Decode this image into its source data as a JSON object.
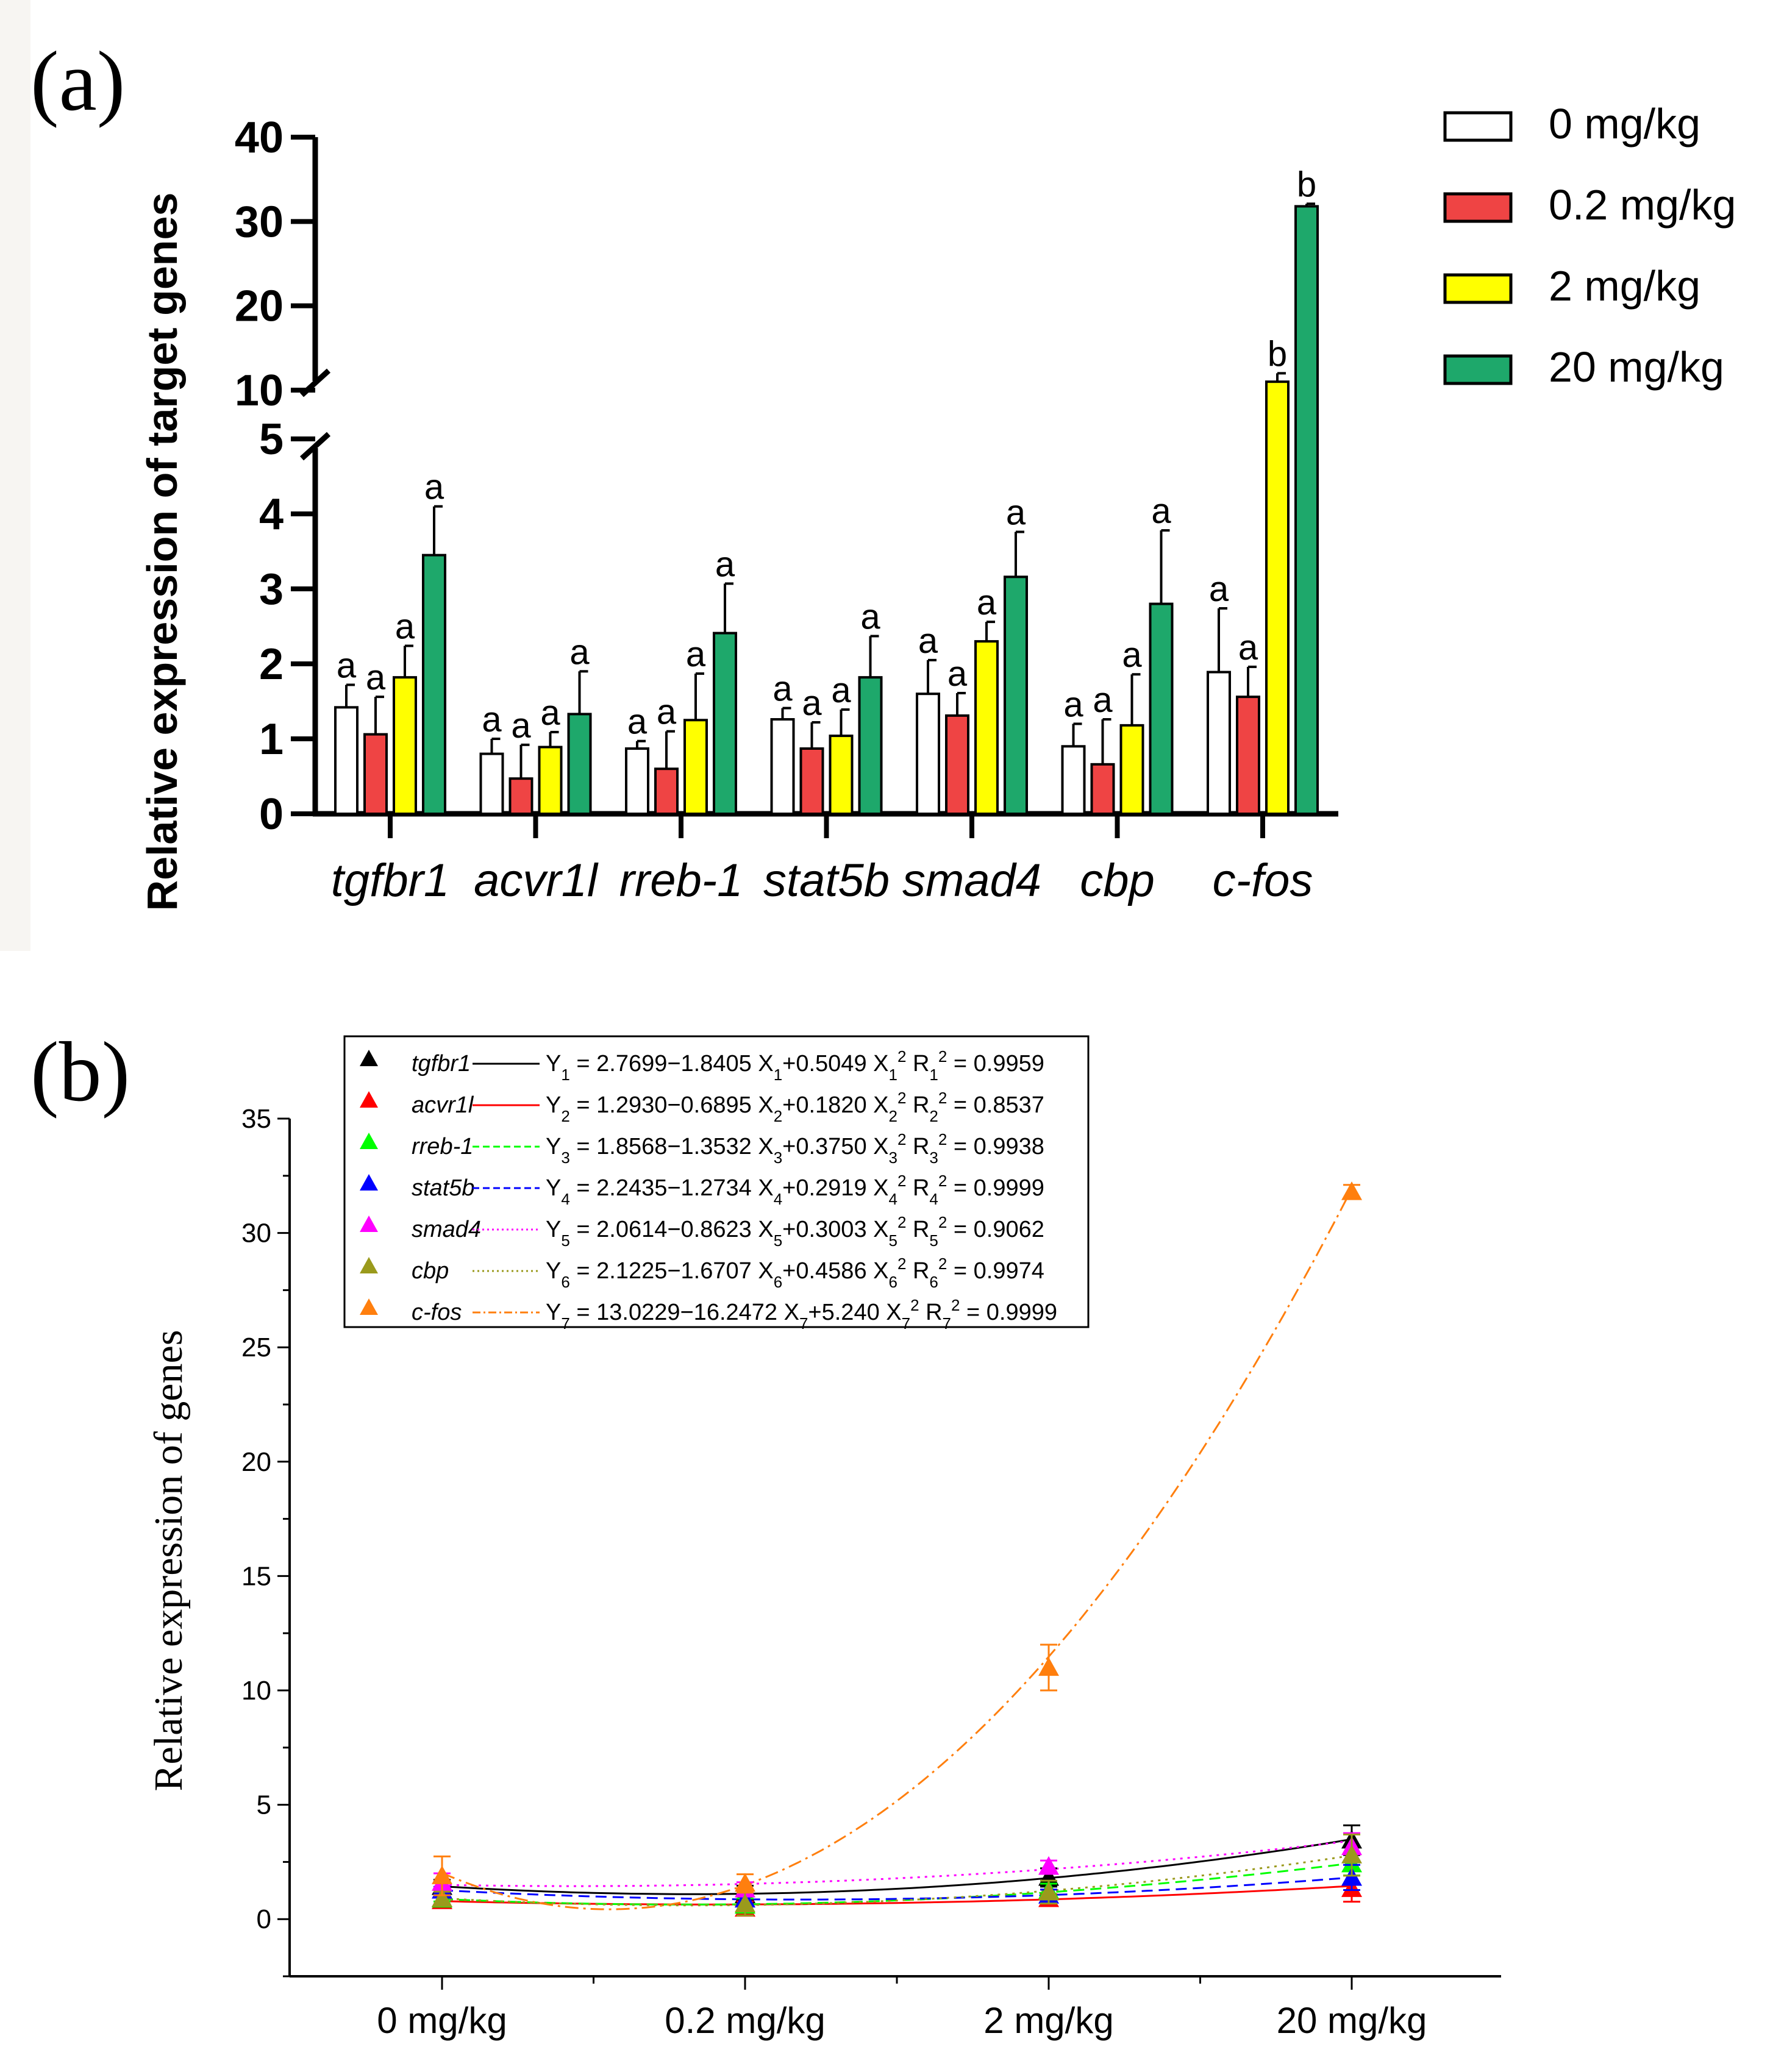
{
  "chart_data": [
    {
      "panel": "(a)",
      "type": "bar",
      "ylabel": "Relative expression of target genes",
      "ylim": [
        0,
        40
      ],
      "axis_break": [
        5,
        10
      ],
      "yticks_lower": [
        "0",
        "1",
        "2",
        "3",
        "4",
        "5"
      ],
      "yticks_upper": [
        "10",
        "20",
        "30",
        "40"
      ],
      "categories": [
        "tgfbr1",
        "acvr1l",
        "rreb-1",
        "stat5b",
        "smad4",
        "cbp",
        "c-fos"
      ],
      "series": [
        {
          "name": "0 mg/kg",
          "color": "#ffffff",
          "values": [
            1.42,
            0.8,
            0.87,
            1.26,
            1.6,
            0.9,
            1.89
          ],
          "errors": [
            0.3,
            0.2,
            0.1,
            0.15,
            0.45,
            0.3,
            0.85
          ],
          "labels": [
            "a",
            "a",
            "a",
            "a",
            "a",
            "a",
            "a"
          ]
        },
        {
          "name": "0.2 mg/kg",
          "color": "#ef4444",
          "values": [
            1.06,
            0.47,
            0.6,
            0.87,
            1.31,
            0.66,
            1.56
          ],
          "errors": [
            0.5,
            0.45,
            0.5,
            0.35,
            0.3,
            0.6,
            0.4
          ],
          "labels": [
            "a",
            "a",
            "a",
            "a",
            "a",
            "a",
            "a"
          ]
        },
        {
          "name": "2 mg/kg",
          "color": "#ffff00",
          "values": [
            1.82,
            0.89,
            1.25,
            1.04,
            2.3,
            1.18,
            11.0
          ],
          "errors": [
            0.42,
            0.2,
            0.62,
            0.35,
            0.26,
            0.68,
            1.0
          ],
          "labels": [
            "a",
            "a",
            "a",
            "a",
            "a",
            "a",
            "b"
          ]
        },
        {
          "name": "20 mg/kg",
          "color": "#1ea86b",
          "values": [
            3.45,
            1.33,
            2.41,
            1.82,
            3.16,
            2.8,
            31.8
          ],
          "errors": [
            0.65,
            0.57,
            0.66,
            0.55,
            0.6,
            0.98,
            0.3
          ],
          "labels": [
            "a",
            "a",
            "a",
            "a",
            "a",
            "a",
            "b"
          ]
        }
      ]
    },
    {
      "panel": "(b)",
      "type": "line",
      "ylabel": "Relative expression of genes",
      "ylim": [
        -2.5,
        35
      ],
      "yticks": [
        "0",
        "5",
        "10",
        "15",
        "20",
        "25",
        "30",
        "35"
      ],
      "x": [
        "0 mg/kg",
        "0.2 mg/kg",
        "2 mg/kg",
        "20 mg/kg"
      ],
      "series": [
        {
          "name": "tgfbr1",
          "color": "#000000",
          "dash": "",
          "coef": [
            2.7699,
            -1.8405,
            0.5049
          ],
          "values": [
            1.42,
            1.06,
            1.82,
            3.45
          ],
          "errors": [
            0.3,
            0.4,
            0.4,
            0.65
          ],
          "eq_y": "Y",
          "eq_sub": "1",
          "eq_mid1": " = 2.7699−1.8405 X",
          "eq_mid2": "+0.5049 X",
          "eq_sq": "2",
          "eq_r": "  R",
          "eq_r_val": " = 0.9959"
        },
        {
          "name": "acvr1l",
          "color": "#ff0000",
          "dash": "",
          "coef": [
            1.293,
            -0.6895,
            0.182
          ],
          "values": [
            0.8,
            0.47,
            0.89,
            1.33
          ],
          "errors": [
            0.2,
            0.3,
            0.2,
            0.57
          ],
          "eq_y": "Y",
          "eq_sub": "2",
          "eq_mid1": " = 1.2930−0.6895 X",
          "eq_mid2": "+0.1820 X",
          "eq_sq": "2",
          "eq_r": "  R",
          "eq_r_val": " = 0.8537"
        },
        {
          "name": "rreb-1",
          "color": "#00ff00",
          "dash": "18,10",
          "coef": [
            1.8568,
            -1.3532,
            0.375
          ],
          "values": [
            0.87,
            0.6,
            1.25,
            2.41
          ],
          "errors": [
            0.1,
            0.3,
            0.3,
            0.5
          ],
          "eq_y": "Y",
          "eq_sub": "3",
          "eq_mid1": " = 1.8568−1.3532 X",
          "eq_mid2": "+0.3750 X",
          "eq_sq": "2",
          "eq_r": "  R",
          "eq_r_val": " = 0.9938"
        },
        {
          "name": "stat5b",
          "color": "#0000ff",
          "dash": "18,10",
          "coef": [
            2.2435,
            -1.2734,
            0.2919
          ],
          "values": [
            1.26,
            0.87,
            1.04,
            1.82
          ],
          "errors": [
            0.15,
            0.25,
            0.25,
            0.55
          ],
          "eq_y": "Y",
          "eq_sub": "4",
          "eq_mid1": " = 2.2435−1.2734 X",
          "eq_mid2": "+0.2919 X",
          "eq_sq": "2",
          "eq_r": "  R",
          "eq_r_val": " = 0.9999"
        },
        {
          "name": "smad4",
          "color": "#ff00ff",
          "dash": "4,8",
          "coef": [
            2.0614,
            -0.8623,
            0.3003
          ],
          "values": [
            1.6,
            1.31,
            2.3,
            3.16
          ],
          "errors": [
            0.4,
            0.3,
            0.26,
            0.6
          ],
          "eq_y": "Y",
          "eq_sub": "5",
          "eq_mid1": " = 2.0614−0.8623 X",
          "eq_mid2": "+0.3003 X",
          "eq_sq": "2",
          "eq_r": "  R",
          "eq_r_val": " = 0.9062"
        },
        {
          "name": "cbp",
          "color": "#9a9a1c",
          "dash": "4,8",
          "coef": [
            2.1225,
            -1.6707,
            0.4586
          ],
          "values": [
            0.9,
            0.66,
            1.18,
            2.8
          ],
          "errors": [
            0.3,
            0.5,
            0.5,
            0.9
          ],
          "eq_y": "Y",
          "eq_sub": "6",
          "eq_mid1": " = 2.1225−1.6707 X",
          "eq_mid2": "+0.4586 X",
          "eq_sq": "2",
          "eq_r": "  R",
          "eq_r_val": " = 0.9974"
        },
        {
          "name": "c-fos",
          "color": "#ff7f0e",
          "dash": "22,8,4,8",
          "coef": [
            13.0229,
            -16.2472,
            5.24
          ],
          "values": [
            1.89,
            1.56,
            11.0,
            31.8
          ],
          "errors": [
            0.85,
            0.4,
            1.0,
            0.3
          ],
          "eq_y": "Y",
          "eq_sub": "7",
          "eq_mid1": " = 13.0229−16.2472 X",
          "eq_mid2": "+5.240 X",
          "eq_sq": "2",
          "eq_r": " R",
          "eq_r_val": " = 0.9999"
        }
      ]
    }
  ]
}
